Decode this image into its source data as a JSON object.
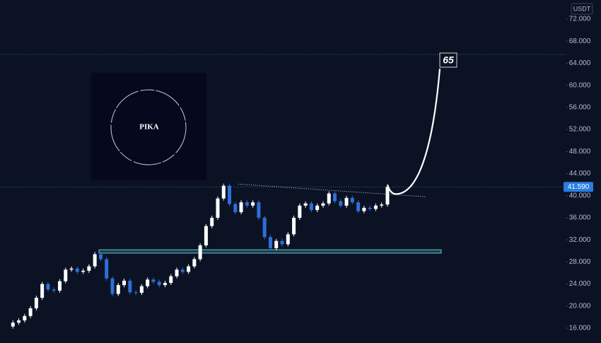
{
  "chart_data": {
    "type": "candles",
    "currency": "USDT",
    "logo_text": "PIKA",
    "annotation": "65",
    "values": [
      16.3,
      17,
      17.4,
      18.2,
      19.6,
      21.5,
      24,
      23,
      22.8,
      24.5,
      26.6,
      26.8,
      26.2,
      26.4,
      27.2,
      29.4,
      28.5,
      25,
      22.2,
      23.8,
      24.6,
      22.5,
      22.4,
      23.6,
      24.8,
      24.4,
      23.8,
      24.2,
      25.4,
      26.6,
      26.2,
      27.2,
      28.5,
      31,
      34.5,
      36,
      39.5,
      41.8,
      38.5,
      37,
      38.8,
      38.2,
      38.8,
      36,
      32.5,
      30.5,
      31.8,
      31.2,
      33,
      36,
      38.2,
      38.6,
      37.4,
      38.2,
      38.6,
      40.4,
      39,
      38.2,
      39.6,
      38.8,
      37.2,
      37.8,
      37.6,
      38.2,
      38.4,
      41.6
    ],
    "up_color": "#ffffff",
    "down_color": "#2f6fd6",
    "current_price": {
      "value": 41.59,
      "label": "41.590"
    },
    "resistance_level": 65.6,
    "support_zone": [
      29.6,
      30.2
    ],
    "trendline": [
      42.1,
      39.8
    ],
    "projection": [
      42,
      40.3,
      63
    ],
    "ylim": [
      14,
      74
    ],
    "yticks": [
      {
        "value": 16,
        "label": "16.000"
      },
      {
        "value": 20,
        "label": "20.000"
      },
      {
        "value": 24,
        "label": "24.000"
      },
      {
        "value": 28,
        "label": "28.000"
      },
      {
        "value": 32,
        "label": "32.000"
      },
      {
        "value": 36,
        "label": "36.000"
      },
      {
        "value": 40,
        "label": "40.000"
      },
      {
        "value": 44,
        "label": "44.000"
      },
      {
        "value": 48,
        "label": "48.000"
      },
      {
        "value": 52,
        "label": "52.000"
      },
      {
        "value": 56,
        "label": "56.000"
      },
      {
        "value": 60,
        "label": "60.000"
      },
      {
        "value": 64,
        "label": "64.000"
      },
      {
        "value": 68,
        "label": "68.000"
      },
      {
        "value": 72,
        "label": "72.000"
      }
    ]
  }
}
